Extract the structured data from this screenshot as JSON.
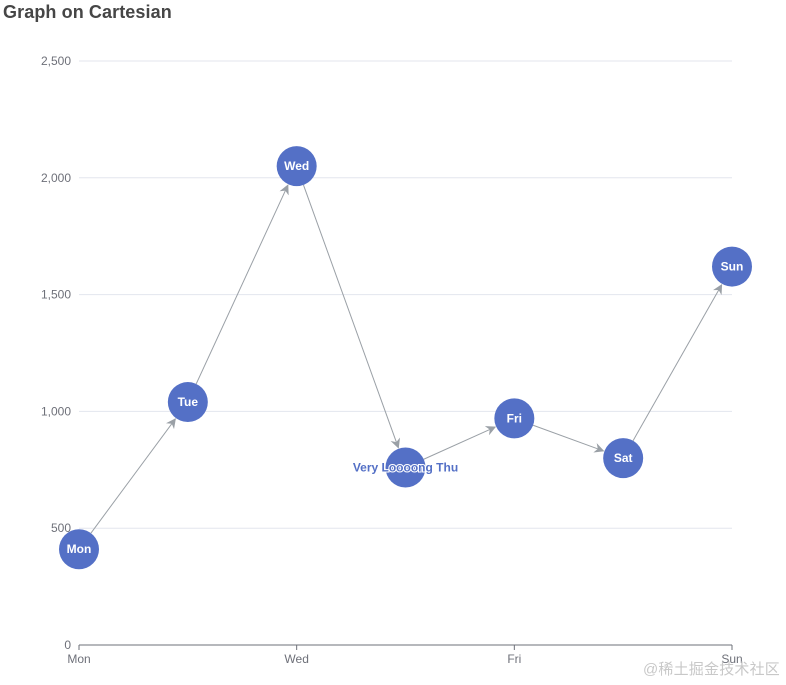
{
  "chart_data": {
    "type": "graph",
    "title": "Graph on Cartesian",
    "coordinate_system": "cartesian2d",
    "xaxis": {
      "type": "category",
      "categories": [
        "Mon",
        "Tue",
        "Wed",
        "Very Loooong Thu",
        "Fri",
        "Sat",
        "Sun"
      ],
      "tick_labels_shown": [
        "Mon",
        "Wed",
        "Fri",
        "Sun"
      ]
    },
    "yaxis": {
      "type": "value",
      "ylim": [
        0,
        2500
      ],
      "ticks": [
        0,
        500,
        1000,
        1500,
        2000,
        2500
      ],
      "tick_labels": [
        "0",
        "500",
        "1,000",
        "1,500",
        "2,000",
        "2,500"
      ]
    },
    "grid": true,
    "nodes": [
      {
        "name": "Mon",
        "label": "Mon",
        "value": 410
      },
      {
        "name": "Tue",
        "label": "Tue",
        "value": 1040
      },
      {
        "name": "Wed",
        "label": "Wed",
        "value": 2050
      },
      {
        "name": "Very Loooong Thu",
        "label": "Very Loooong Thu",
        "value": 760
      },
      {
        "name": "Fri",
        "label": "Fri",
        "value": 970
      },
      {
        "name": "Sat",
        "label": "Sat",
        "value": 800
      },
      {
        "name": "Sun",
        "label": "Sun",
        "value": 1620
      }
    ],
    "edges": [
      {
        "source": "Mon",
        "target": "Tue"
      },
      {
        "source": "Tue",
        "target": "Wed"
      },
      {
        "source": "Wed",
        "target": "Very Loooong Thu"
      },
      {
        "source": "Very Loooong Thu",
        "target": "Fri"
      },
      {
        "source": "Fri",
        "target": "Sat"
      },
      {
        "source": "Sat",
        "target": "Sun"
      }
    ],
    "edge_symbol": "arrow",
    "colors": {
      "node": "#5470c6",
      "edge": "#9aa0a6",
      "grid": "#e3e6ee",
      "axis": "#6e7079",
      "title": "#464646"
    }
  },
  "watermark": "@稀土掘金技术社区"
}
